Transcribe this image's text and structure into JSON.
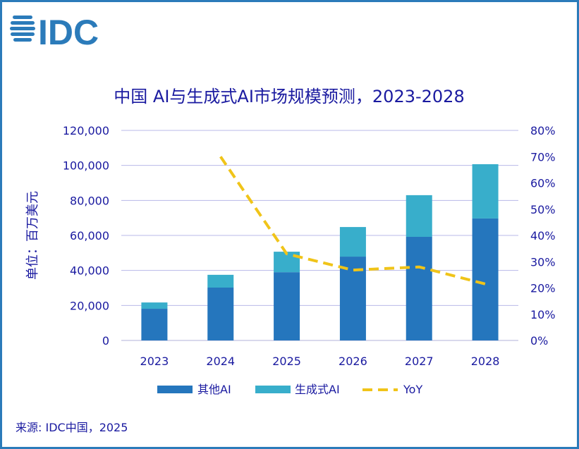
{
  "logo": {
    "text": "IDC",
    "color": "#2b7bba"
  },
  "source": "来源: IDC中国，2025",
  "chart_data": {
    "type": "bar",
    "stacked": true,
    "title": "中国 AI与生成式AI市场规模预测，2023-2028",
    "ylabel": "单位：百万美元",
    "categories": [
      "2023",
      "2024",
      "2025",
      "2026",
      "2027",
      "2028"
    ],
    "ylim": [
      0,
      120000
    ],
    "yticks": [
      "0",
      "20,000",
      "40,000",
      "60,000",
      "80,000",
      "100,000",
      "120,000"
    ],
    "y2lim": [
      0,
      80
    ],
    "y2ticks": [
      "0%",
      "10%",
      "20%",
      "30%",
      "40%",
      "50%",
      "60%",
      "70%",
      "80%"
    ],
    "grid": true,
    "legend_placement": "bottom",
    "series": [
      {
        "name": "其他AI",
        "type": "bar",
        "color": "#2576bd",
        "values": [
          18100,
          30200,
          39000,
          47900,
          59200,
          69700
        ]
      },
      {
        "name": "生成式AI",
        "type": "bar",
        "color": "#38aecb",
        "values": [
          3600,
          7300,
          11700,
          16900,
          23800,
          31000
        ]
      },
      {
        "name": "YoY",
        "type": "line",
        "axis": "right",
        "style": "dashed",
        "color": "#f0c419",
        "values": [
          null,
          70,
          33,
          26.8,
          28,
          21.5
        ]
      }
    ]
  }
}
